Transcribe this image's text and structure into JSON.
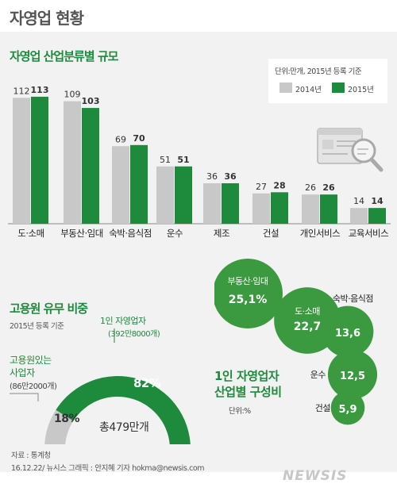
{
  "header": {
    "title": "자영업 현황"
  },
  "bar_section": {
    "title": "자영업 산업분류별 규모"
  },
  "legend": {
    "unit": "단위:만개, 2015년 등록 기준",
    "series_2014": "2014년",
    "series_2015": "2015년"
  },
  "employment_section": {
    "title": "고용원 유무 비중",
    "subtitle": "2015년 등록 기준",
    "no_employee_label_1": "1인 자영업자",
    "no_employee_label_2": "(392만8000개)",
    "with_employee_label_1": "고용원있는",
    "with_employee_label_2": "사업자",
    "with_employee_label_3": "(86만2000개)",
    "pct_no_employee": "82%",
    "pct_with_employee": "18%",
    "total": "총479만개"
  },
  "bubble_section": {
    "title_1": "1인 자영업자",
    "title_2": "산업별 구성비",
    "unit": "단위:%"
  },
  "footer": {
    "source": "자료 : 통계청",
    "credit": "16.12.22/ 뉴시스 그래픽 : 안지혜 기자 hokma@newsis.com"
  },
  "watermark": "NEWSIS",
  "colors": {
    "green": "#1d8a3c",
    "gray": "#c8c8c8",
    "bubble": "#3b9a3f"
  },
  "chart_data": [
    {
      "type": "bar",
      "title": "자영업 산업분류별 규모",
      "categories": [
        "도·소매",
        "부동산·임대",
        "숙박·음식점",
        "운수",
        "제조",
        "건설",
        "개인서비스",
        "교육서비스"
      ],
      "series": [
        {
          "name": "2014년",
          "values": [
            112,
            109,
            69,
            51,
            36,
            27,
            26,
            14
          ]
        },
        {
          "name": "2015년",
          "values": [
            113,
            103,
            70,
            51,
            36,
            28,
            26,
            14
          ]
        }
      ],
      "ylim": [
        0,
        120
      ]
    },
    {
      "type": "pie",
      "title": "고용원 유무 비중",
      "categories": [
        "1인 자영업자",
        "고용원있는 사업자"
      ],
      "values": [
        82,
        18
      ]
    },
    {
      "type": "scatter",
      "title": "1인 자영업자 산업별 구성비",
      "categories": [
        "부동산·임대",
        "도·소매",
        "숙박·음식점",
        "운수",
        "건설"
      ],
      "values": [
        25.1,
        22.7,
        13.6,
        12.5,
        5.9
      ],
      "value_labels": [
        "25,1%",
        "22,7",
        "13,6",
        "12,5",
        "5,9"
      ]
    }
  ]
}
